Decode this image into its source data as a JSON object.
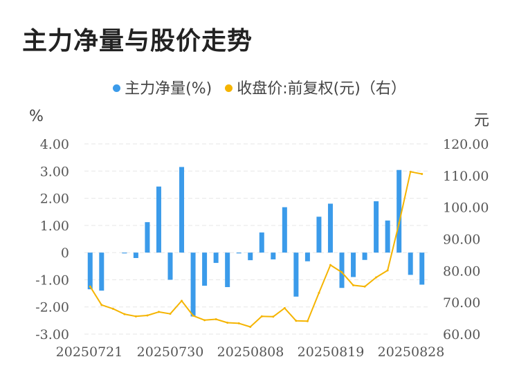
{
  "title": "主力净量与股价走势",
  "legend": {
    "net_label": "主力净量(%)",
    "price_label": "收盘价:前复权(元)（右）"
  },
  "left_unit": "%",
  "right_unit": "元",
  "colors": {
    "bar": "#3B9BEA",
    "line": "#F5B400",
    "grid": "#E6E6E6"
  },
  "chart_data": {
    "type": "bar+line",
    "x_tick_labels": [
      "20250721",
      "20250730",
      "20250808",
      "20250819",
      "20250828"
    ],
    "y_left_ticks": [
      "4.00",
      "3.00",
      "2.00",
      "1.00",
      "0",
      "-1.00",
      "-2.00",
      "-3.00"
    ],
    "y_right_ticks": [
      "120.00",
      "110.00",
      "100.00",
      "90.00",
      "80.00",
      "70.00",
      "60.00"
    ],
    "ylim_left": [
      -3,
      4
    ],
    "ylim_right": [
      60,
      120
    ],
    "series": [
      {
        "name": "主力净量(%)",
        "type": "bar",
        "axis": "left",
        "values": [
          -1.35,
          -1.4,
          0,
          -0.03,
          -0.2,
          1.12,
          2.43,
          -1.0,
          3.15,
          -2.35,
          -1.22,
          -0.38,
          -1.27,
          -0.03,
          -0.28,
          0.74,
          -0.25,
          1.67,
          -1.62,
          -0.32,
          1.32,
          1.8,
          -1.3,
          -0.9,
          -0.27,
          1.89,
          1.18,
          3.04,
          -0.82,
          -1.18
        ]
      },
      {
        "name": "收盘价:前复权(元)（右）",
        "type": "line",
        "axis": "right",
        "values": [
          75.0,
          69.2,
          68.0,
          66.3,
          65.6,
          65.9,
          67.0,
          66.4,
          70.5,
          65.8,
          64.4,
          64.7,
          63.6,
          63.4,
          62.3,
          65.6,
          65.5,
          68.2,
          64.2,
          64.1,
          73.0,
          81.8,
          79.5,
          75.4,
          75.0,
          77.9,
          80.1,
          95.0,
          111.2,
          110.5
        ]
      }
    ]
  }
}
